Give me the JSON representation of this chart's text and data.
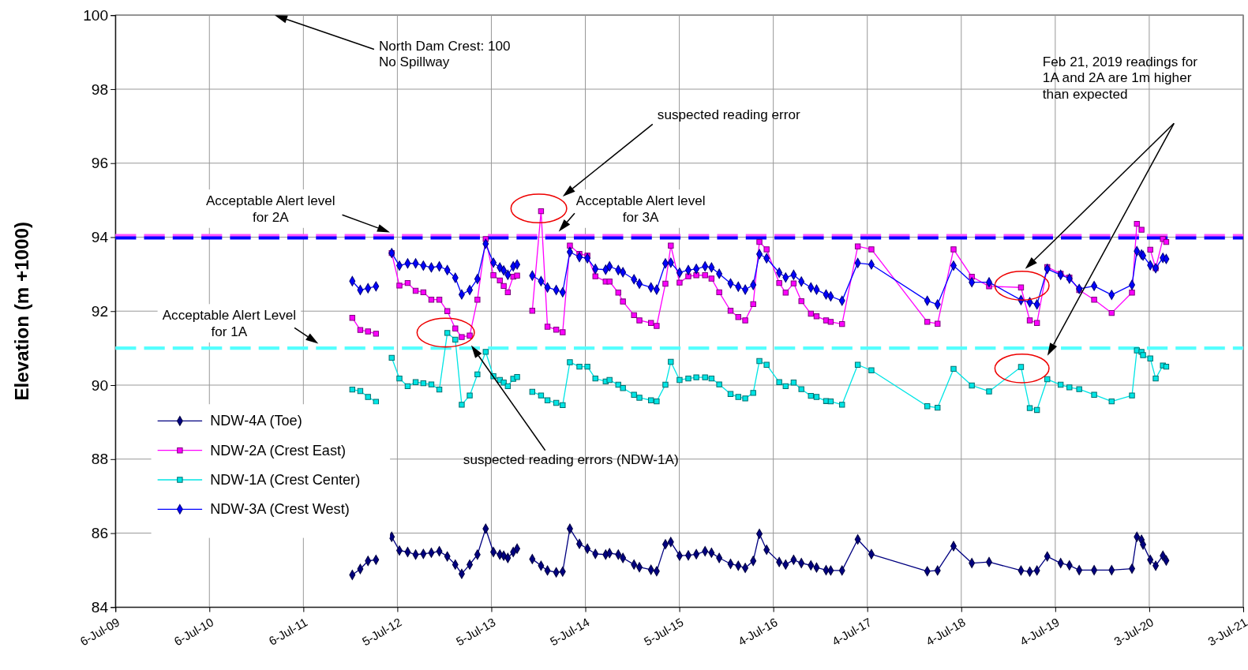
{
  "chart_data": {
    "type": "line",
    "ylabel": "Elevation (m +1000)",
    "x": [
      "2012-01-12",
      "2012-02-12",
      "2012-03-13",
      "2012-04-13",
      "2012-05-13",
      "2012-06-13",
      "2012-07-13",
      "2012-08-14",
      "2012-09-14",
      "2012-10-14",
      "2012-11-14",
      "2012-12-15",
      "2013-01-15",
      "2013-02-15",
      "2013-03-12",
      "2013-04-12",
      "2013-05-12",
      "2013-06-13",
      "2013-07-13",
      "2013-08-07",
      "2013-08-22",
      "2013-09-07",
      "2013-09-28",
      "2013-10-13",
      "2013-11-12",
      "2013-12-11",
      "2014-01-14",
      "2014-02-08",
      "2014-03-14",
      "2014-04-08",
      "2014-05-06",
      "2014-06-12",
      "2014-07-13",
      "2014-08-13",
      "2014-09-22",
      "2014-10-07",
      "2014-11-10",
      "2014-11-28",
      "2015-01-10",
      "2015-01-31",
      "2015-03-17",
      "2015-04-08",
      "2015-05-12",
      "2015-06-02",
      "2015-07-06",
      "2015-08-09",
      "2015-09-09",
      "2015-10-13",
      "2015-11-07",
      "2015-12-07",
      "2016-01-20",
      "2016-02-19",
      "2016-03-17",
      "2016-04-17",
      "2016-05-11",
      "2016-06-08",
      "2016-07-27",
      "2016-08-21",
      "2016-09-21",
      "2016-10-21",
      "2016-11-27",
      "2016-12-19",
      "2017-01-25",
      "2017-02-12",
      "2017-03-28",
      "2017-05-28",
      "2017-07-20",
      "2018-02-22",
      "2018-04-03",
      "2018-06-04",
      "2018-08-14",
      "2018-10-20",
      "2019-02-21",
      "2019-03-27",
      "2019-04-24",
      "2019-06-03",
      "2019-07-25",
      "2019-08-28",
      "2019-10-05",
      "2019-12-02",
      "2020-02-08",
      "2020-04-27",
      "2020-05-16",
      "2020-06-03",
      "2020-06-09",
      "2020-07-07",
      "2020-07-28",
      "2020-08-25",
      "2020-09-07"
    ],
    "series": [
      {
        "name": "NDW-4A (Toe)",
        "color": "#000080",
        "marker": "diamond",
        "values": [
          84.87,
          85.03,
          85.25,
          85.28,
          null,
          85.9,
          85.53,
          85.49,
          85.42,
          85.44,
          85.47,
          85.51,
          85.37,
          85.15,
          84.9,
          85.15,
          85.42,
          86.12,
          85.49,
          85.42,
          85.39,
          85.33,
          85.49,
          85.58,
          null,
          85.3,
          85.12,
          84.99,
          84.94,
          84.96,
          86.12,
          85.71,
          85.58,
          85.44,
          85.42,
          85.46,
          85.42,
          85.33,
          85.15,
          85.08,
          85.01,
          84.97,
          85.7,
          85.76,
          85.39,
          85.4,
          85.43,
          85.51,
          85.47,
          85.33,
          85.17,
          85.12,
          85.06,
          85.25,
          85.98,
          85.55,
          85.22,
          85.15,
          85.28,
          85.19,
          85.13,
          85.07,
          85.0,
          84.99,
          84.99,
          85.83,
          85.43,
          84.97,
          84.99,
          85.65,
          85.19,
          85.22,
          84.99,
          84.96,
          84.99,
          85.37,
          85.19,
          85.13,
          85.0,
          85.0,
          85.0,
          85.04,
          85.9,
          85.82,
          85.69,
          85.28,
          85.12,
          85.39,
          85.26
        ]
      },
      {
        "name": "NDW-2A (Crest East)",
        "color": "#ff00ff",
        "marker": "square",
        "values": [
          91.82,
          91.49,
          91.45,
          91.39,
          null,
          93.57,
          92.69,
          92.76,
          92.55,
          92.51,
          92.31,
          92.31,
          92.0,
          91.53,
          91.3,
          91.34,
          92.31,
          93.95,
          92.97,
          92.83,
          92.68,
          92.51,
          92.93,
          92.96,
          null,
          92.01,
          94.7,
          91.58,
          91.5,
          91.43,
          93.77,
          93.55,
          93.5,
          92.94,
          92.8,
          92.8,
          92.5,
          92.26,
          91.89,
          91.75,
          91.68,
          91.6,
          92.74,
          93.77,
          92.77,
          92.94,
          92.97,
          92.97,
          92.88,
          92.51,
          92.01,
          91.84,
          91.75,
          92.19,
          93.87,
          93.67,
          92.76,
          92.5,
          92.75,
          92.27,
          91.93,
          91.86,
          91.75,
          91.71,
          91.65,
          93.75,
          93.67,
          91.71,
          91.66,
          93.67,
          92.93,
          92.67,
          92.64,
          91.75,
          91.68,
          93.19,
          93.01,
          92.91,
          92.57,
          92.31,
          91.95,
          92.5,
          94.36,
          94.2,
          null,
          93.66,
          93.16,
          93.95,
          93.87
        ]
      },
      {
        "name": "NDW-1A (Crest Center)",
        "color": "#00e5e5",
        "marker": "square",
        "values": [
          89.88,
          89.84,
          89.68,
          89.55,
          null,
          90.74,
          90.18,
          89.97,
          90.08,
          90.05,
          90.02,
          89.88,
          91.41,
          91.23,
          89.47,
          89.72,
          90.29,
          90.9,
          90.24,
          90.14,
          90.07,
          89.97,
          90.17,
          90.22,
          null,
          89.82,
          89.72,
          89.59,
          89.52,
          89.46,
          90.62,
          90.5,
          90.5,
          90.18,
          90.1,
          90.14,
          90.01,
          89.92,
          89.74,
          89.66,
          89.59,
          89.56,
          90.01,
          90.63,
          90.14,
          90.18,
          90.21,
          90.21,
          90.18,
          90.02,
          89.76,
          89.68,
          89.64,
          89.79,
          90.65,
          90.55,
          90.08,
          89.97,
          90.07,
          89.89,
          89.71,
          89.68,
          89.57,
          89.56,
          89.47,
          90.55,
          90.4,
          89.43,
          89.39,
          90.44,
          89.99,
          89.83,
          90.49,
          89.38,
          89.33,
          90.16,
          90.01,
          89.94,
          89.89,
          89.74,
          89.56,
          89.72,
          90.94,
          90.9,
          90.81,
          90.72,
          90.18,
          90.53,
          90.5
        ]
      },
      {
        "name": "NDW-3A (Crest West)",
        "color": "#0000ff",
        "marker": "diamond",
        "values": [
          92.81,
          92.57,
          92.62,
          92.67,
          null,
          93.57,
          93.23,
          93.29,
          93.29,
          93.23,
          93.18,
          93.21,
          93.11,
          92.9,
          92.45,
          92.57,
          92.87,
          93.82,
          93.31,
          93.18,
          93.1,
          92.98,
          93.21,
          93.26,
          null,
          92.96,
          92.81,
          92.64,
          92.57,
          92.51,
          93.6,
          93.46,
          93.43,
          93.14,
          93.12,
          93.21,
          93.11,
          93.05,
          92.86,
          92.74,
          92.64,
          92.58,
          93.29,
          93.31,
          93.04,
          93.11,
          93.14,
          93.21,
          93.18,
          93.01,
          92.75,
          92.66,
          92.58,
          92.71,
          93.54,
          93.43,
          93.04,
          92.91,
          92.98,
          92.8,
          92.64,
          92.58,
          92.45,
          92.4,
          92.28,
          93.3,
          93.26,
          92.28,
          92.18,
          93.23,
          92.78,
          92.78,
          92.3,
          92.24,
          92.18,
          93.14,
          92.98,
          92.88,
          92.6,
          92.68,
          92.44,
          92.71,
          93.62,
          93.53,
          93.5,
          93.24,
          93.16,
          93.44,
          93.41
        ]
      }
    ],
    "xlim": [
      "2009-07-06",
      "2021-07-03"
    ],
    "xticks": [
      {
        "value": "2009-07-06",
        "label": "6-Jul-09"
      },
      {
        "value": "2010-07-06",
        "label": "6-Jul-10"
      },
      {
        "value": "2011-07-06",
        "label": "6-Jul-11"
      },
      {
        "value": "2012-07-05",
        "label": "5-Jul-12"
      },
      {
        "value": "2013-07-05",
        "label": "5-Jul-13"
      },
      {
        "value": "2014-07-05",
        "label": "5-Jul-14"
      },
      {
        "value": "2015-07-05",
        "label": "5-Jul-15"
      },
      {
        "value": "2016-07-04",
        "label": "4-Jul-16"
      },
      {
        "value": "2017-07-04",
        "label": "4-Jul-17"
      },
      {
        "value": "2018-07-04",
        "label": "4-Jul-18"
      },
      {
        "value": "2019-07-04",
        "label": "4-Jul-19"
      },
      {
        "value": "2020-07-03",
        "label": "3-Jul-20"
      },
      {
        "value": "2021-07-03",
        "label": "3-Jul-21"
      }
    ],
    "ylim": [
      84,
      100
    ],
    "yticks": [
      84,
      86,
      88,
      90,
      92,
      94,
      96,
      98,
      100
    ],
    "grid": true,
    "legend": "bottom left",
    "ref_lines": [
      {
        "axis": "y",
        "value": 94,
        "label": "Acceptable Alert level\nfor 2A",
        "color": "#ff55ff",
        "line_style": "dashed"
      },
      {
        "axis": "y",
        "value": 94,
        "label": "Acceptable Alert level\nfor 3A",
        "color": "#0000ff",
        "line_style": "dashed"
      },
      {
        "axis": "y",
        "value": 91,
        "label": "Acceptable Alert Level\nfor 1A",
        "color": "#55ffff",
        "line_style": "dashed"
      }
    ],
    "annotations": [
      "North Dam Crest: 100\nNo Spillway",
      "suspected reading error",
      "suspected reading errors (NDW-1A)",
      "Feb 21, 2019 readings for\n1A and 2A are 1m higher\nthan expected"
    ]
  }
}
